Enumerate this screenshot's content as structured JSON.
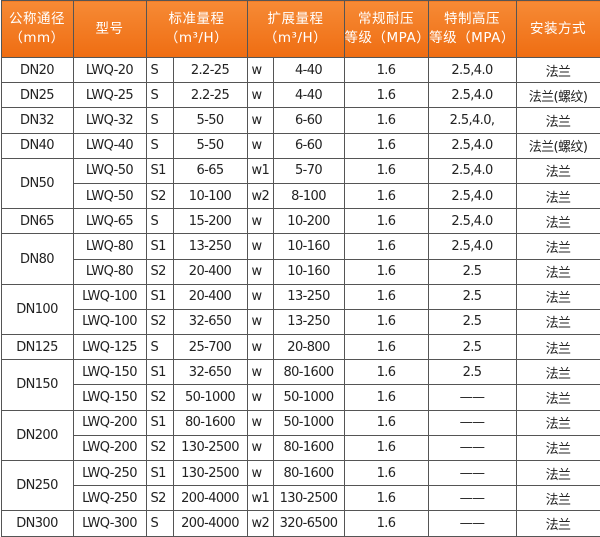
{
  "header": {
    "dn": [
      "公称通径",
      "（mm）"
    ],
    "model": "型号",
    "std_range": [
      "标准量程",
      "（m³/H）"
    ],
    "ext_range": [
      "扩展量程",
      "（m³/H）"
    ],
    "normal_pressure": [
      "常规耐压",
      "等级（MPA）"
    ],
    "high_pressure": [
      "特制高压",
      "等级（MPA）"
    ],
    "install": "安装方式"
  },
  "colors": {
    "header_bg": "#f47a20",
    "header_text": "#ffffff",
    "border": "#555555"
  },
  "rows": [
    {
      "dn": "DN20",
      "model": "LWQ-20",
      "s": "S",
      "std": "2.2-25",
      "w": "w",
      "ext": "4-40",
      "np": "1.6",
      "hp": "2.5,4.0",
      "inst": "法兰"
    },
    {
      "dn": "DN25",
      "model": "LWQ-25",
      "s": "S",
      "std": "2.2-25",
      "w": "w",
      "ext": "4-40",
      "np": "1.6",
      "hp": "2.5,4.0",
      "inst": "法兰(螺纹)"
    },
    {
      "dn": "DN32",
      "model": "LWQ-32",
      "s": "S",
      "std": "5-50",
      "w": "w",
      "ext": "6-60",
      "np": "1.6",
      "hp": "2.5,4.0,",
      "inst": "法兰"
    },
    {
      "dn": "DN40",
      "model": "LWQ-40",
      "s": "S",
      "std": "5-50",
      "w": "w",
      "ext": "6-60",
      "np": "1.6",
      "hp": "2.5,4.0",
      "inst": "法兰(螺纹)"
    },
    {
      "dn": "DN50",
      "model": "LWQ-50",
      "s": "S1",
      "std": "6-65",
      "w": "w1",
      "ext": "5-70",
      "np": "1.6",
      "hp": "2.5,4.0",
      "inst": "法兰"
    },
    {
      "dn": "",
      "model": "LWQ-50",
      "s": "S2",
      "std": "10-100",
      "w": "w2",
      "ext": "8-100",
      "np": "1.6",
      "hp": "2.5,4.0",
      "inst": "法兰"
    },
    {
      "dn": "DN65",
      "model": "LWQ-65",
      "s": "S",
      "std": "15-200",
      "w": "w",
      "ext": "10-200",
      "np": "1.6",
      "hp": "2.5,4.0",
      "inst": "法兰"
    },
    {
      "dn": "DN80",
      "model": "LWQ-80",
      "s": "S1",
      "std": "13-250",
      "w": "w",
      "ext": "10-160",
      "np": "1.6",
      "hp": "2.5,4.0",
      "inst": "法兰"
    },
    {
      "dn": "",
      "model": "LWQ-80",
      "s": "S2",
      "std": "20-400",
      "w": "w",
      "ext": "10-160",
      "np": "1.6",
      "hp": "2.5",
      "inst": "法兰"
    },
    {
      "dn": "DN100",
      "model": "LWQ-100",
      "s": "S1",
      "std": "20-400",
      "w": "w",
      "ext": "13-250",
      "np": "1.6",
      "hp": "2.5",
      "inst": "法兰"
    },
    {
      "dn": "",
      "model": "LWQ-100",
      "s": "S2",
      "std": "32-650",
      "w": "w",
      "ext": "13-250",
      "np": "1.6",
      "hp": "2.5",
      "inst": "法兰"
    },
    {
      "dn": "DN125",
      "model": "LWQ-125",
      "s": "S",
      "std": "25-700",
      "w": "w",
      "ext": "20-800",
      "np": "1.6",
      "hp": "2.5",
      "inst": "法兰"
    },
    {
      "dn": "DN150",
      "model": "LWQ-150",
      "s": "S1",
      "std": "32-650",
      "w": "w",
      "ext": "80-1600",
      "np": "1.6",
      "hp": "2.5",
      "inst": "法兰"
    },
    {
      "dn": "",
      "model": "LWQ-150",
      "s": "S2",
      "std": "50-1000",
      "w": "w",
      "ext": "50-1000",
      "np": "1.6",
      "hp": "——",
      "inst": "法兰"
    },
    {
      "dn": "DN200",
      "model": "LWQ-200",
      "s": "S1",
      "std": "80-1600",
      "w": "w",
      "ext": "50-1000",
      "np": "1.6",
      "hp": "——",
      "inst": "法兰"
    },
    {
      "dn": "",
      "model": "LWQ-200",
      "s": "S2",
      "std": "130-2500",
      "w": "w",
      "ext": "80-1600",
      "np": "1.6",
      "hp": "——",
      "inst": "法兰"
    },
    {
      "dn": "DN250",
      "model": "LWQ-250",
      "s": "S1",
      "std": "130-2500",
      "w": "w",
      "ext": "80-1600",
      "np": "1.6",
      "hp": "——",
      "inst": "法兰"
    },
    {
      "dn": "",
      "model": "LWQ-250",
      "s": "S2",
      "std": "200-4000",
      "w": "w1",
      "ext": "130-2500",
      "np": "1.6",
      "hp": "——",
      "inst": "法兰"
    },
    {
      "dn": "DN300",
      "model": "LWQ-300",
      "s": "S",
      "std": "200-4000",
      "w": "w2",
      "ext": "320-6500",
      "np": "1.6",
      "hp": "——",
      "inst": "法兰"
    }
  ]
}
